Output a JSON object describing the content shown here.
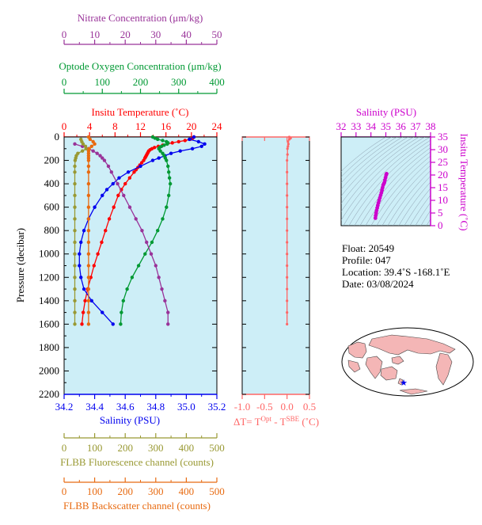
{
  "colors": {
    "nitrate": "#993399",
    "oxygen": "#009933",
    "temperature": "#ff0000",
    "salinity": "#0000ee",
    "fluorescence": "#999933",
    "backscatter": "#e86a10",
    "delta_t": "#ff6666",
    "ts_salinity": "#cc00cc",
    "plot_bg": "#cdeef7",
    "land": "#f4b6b6"
  },
  "axes": {
    "nitrate": {
      "title": "Nitrate Concentration (μm/kg)",
      "ticks": [
        "0",
        "10",
        "20",
        "30",
        "40",
        "50"
      ]
    },
    "oxygen": {
      "title": "Optode Oxygen Concentration (μm/kg)",
      "ticks": [
        "0",
        "100",
        "200",
        "300",
        "400"
      ]
    },
    "temperature": {
      "title": "Insitu Temperature (˚C)",
      "ticks": [
        "0",
        "4",
        "8",
        "12",
        "16",
        "20",
        "24"
      ]
    },
    "pressure": {
      "title": "Pressure (decibar)",
      "ticks": [
        "0",
        "200",
        "400",
        "600",
        "800",
        "1000",
        "1200",
        "1400",
        "1600",
        "1800",
        "2000",
        "2200"
      ]
    },
    "salinity": {
      "title": "Salinity (PSU)",
      "ticks": [
        "34.2",
        "34.4",
        "34.6",
        "34.8",
        "35.0",
        "35.2"
      ]
    },
    "fluorescence": {
      "title": "FLBB Fluorescence channel (counts)",
      "ticks": [
        "0",
        "100",
        "200",
        "300",
        "400",
        "500"
      ]
    },
    "backscatter": {
      "title": "FLBB Backscatter channel (counts)",
      "ticks": [
        "0",
        "100",
        "200",
        "300",
        "400",
        "500"
      ]
    },
    "delta_t": {
      "title": "ΔT= T",
      "sup1": "Opt",
      "mid": " - T",
      "sup2": "SBE",
      "unit": " (˚C)",
      "ticks": [
        "-1.0",
        "-0.5",
        "0.0",
        "0.5"
      ]
    },
    "ts_salinity": {
      "title": "Salinity (PSU)",
      "ticks": [
        "32",
        "33",
        "34",
        "35",
        "36",
        "37",
        "38"
      ]
    },
    "ts_temperature": {
      "title": "Insitu Temperature (˚C)",
      "ticks": [
        "0",
        "5",
        "10",
        "15",
        "20",
        "25",
        "30",
        "35"
      ]
    }
  },
  "info": {
    "float": "Float:  20549",
    "profile": "Profile:  047",
    "location": "Location:  39.4˚S  -168.1˚E",
    "date": "Date:  03/08/2024"
  },
  "chart_data": {
    "type": "line",
    "y_axis": "pressure",
    "ylim": [
      2200,
      0
    ],
    "series": [
      {
        "axis": "temperature",
        "xlim": [
          0,
          24
        ],
        "pressure": [
          0,
          10,
          20,
          30,
          40,
          50,
          60,
          70,
          80,
          90,
          100,
          110,
          120,
          130,
          140,
          150,
          160,
          170,
          180,
          200,
          220,
          240,
          260,
          280,
          300,
          350,
          400,
          450,
          500,
          600,
          700,
          800,
          900,
          1000,
          1100,
          1200,
          1300,
          1400,
          1500,
          1600
        ],
        "values": [
          20.4,
          20.2,
          19.8,
          19.0,
          18.0,
          17.0,
          16.2,
          15.5,
          14.8,
          14.2,
          13.8,
          13.5,
          13.3,
          13.2,
          13.1,
          13.0,
          12.9,
          12.8,
          12.7,
          12.5,
          12.2,
          11.9,
          11.6,
          11.3,
          11.0,
          10.3,
          9.6,
          9.0,
          8.5,
          7.8,
          7.1,
          6.5,
          5.9,
          5.3,
          4.7,
          4.2,
          3.7,
          3.3,
          3.0,
          2.8
        ]
      },
      {
        "axis": "salinity",
        "xlim": [
          34.2,
          35.2
        ],
        "pressure": [
          0,
          20,
          40,
          60,
          80,
          100,
          120,
          140,
          160,
          180,
          200,
          250,
          300,
          350,
          400,
          450,
          500,
          600,
          700,
          800,
          900,
          1000,
          1100,
          1200,
          1300,
          1400,
          1500,
          1600
        ],
        "values": [
          35.05,
          35.02,
          35.08,
          35.12,
          35.1,
          35.04,
          34.96,
          34.9,
          34.86,
          34.82,
          34.78,
          34.7,
          34.62,
          34.56,
          34.52,
          34.48,
          34.45,
          34.4,
          34.36,
          34.33,
          34.31,
          34.3,
          34.3,
          34.31,
          34.33,
          34.38,
          34.45,
          34.52
        ]
      },
      {
        "axis": "oxygen",
        "xlim": [
          0,
          400
        ],
        "pressure": [
          0,
          10,
          20,
          30,
          40,
          50,
          60,
          70,
          80,
          90,
          100,
          120,
          140,
          160,
          180,
          200,
          250,
          300,
          350,
          400,
          500,
          600,
          700,
          800,
          900,
          1000,
          1100,
          1200,
          1300,
          1400,
          1500,
          1600
        ],
        "values": [
          232,
          238,
          245,
          258,
          268,
          272,
          270,
          262,
          255,
          250,
          248,
          252,
          258,
          262,
          265,
          268,
          272,
          274,
          276,
          278,
          274,
          268,
          258,
          245,
          230,
          212,
          195,
          178,
          165,
          155,
          150,
          148
        ]
      },
      {
        "axis": "nitrate",
        "xlim": [
          0,
          50
        ],
        "pressure": [
          60,
          80,
          100,
          120,
          140,
          160,
          180,
          200,
          250,
          300,
          400,
          500,
          600,
          700,
          800,
          900,
          1000,
          1100,
          1200,
          1300,
          1400,
          1500,
          1600
        ],
        "values": [
          3.5,
          6.0,
          8.0,
          9.5,
          10.8,
          11.8,
          12.5,
          13.2,
          14.5,
          15.5,
          17.5,
          19.5,
          21.5,
          23.5,
          25.5,
          27.0,
          28.5,
          30.0,
          31.0,
          32.0,
          33.0,
          34.0,
          34.0
        ]
      },
      {
        "axis": "fluorescence",
        "xlim": [
          0,
          500
        ],
        "pressure": [
          20,
          40,
          60,
          80,
          100,
          120,
          140,
          160,
          180,
          200,
          250,
          300,
          400,
          500,
          600,
          700,
          800,
          900,
          1000,
          1100,
          1200,
          1300,
          1400,
          1500,
          1600
        ],
        "values": [
          55,
          58,
          62,
          70,
          72,
          60,
          45,
          40,
          38,
          36,
          35,
          35,
          35,
          35,
          35,
          35,
          35,
          35,
          35,
          35,
          35,
          35,
          35,
          35,
          35
        ]
      },
      {
        "axis": "backscatter",
        "xlim": [
          0,
          500
        ],
        "pressure": [
          0,
          20,
          40,
          60,
          80,
          100,
          120,
          140,
          160,
          180,
          200,
          250,
          300,
          400,
          500,
          600,
          700,
          800,
          900,
          1000,
          1100,
          1200,
          1300,
          1400,
          1500,
          1600
        ],
        "values": [
          80,
          85,
          95,
          100,
          90,
          82,
          80,
          80,
          80,
          80,
          80,
          80,
          80,
          80,
          80,
          80,
          80,
          80,
          80,
          80,
          80,
          80,
          80,
          80,
          80,
          80
        ]
      },
      {
        "axis": "delta_t",
        "xlim": [
          -1.0,
          0.5
        ],
        "pressure": [
          0,
          10,
          20,
          40,
          60,
          80,
          100,
          150,
          200,
          300,
          400,
          500,
          600,
          700,
          800,
          900,
          1000,
          1100,
          1200,
          1300,
          1400,
          1500,
          1600
        ],
        "values": [
          0.05,
          0.08,
          0.05,
          0.02,
          0.03,
          0.02,
          0.01,
          0.01,
          0.0,
          0.0,
          0.0,
          0.0,
          0.0,
          0.0,
          0.0,
          0.0,
          0.0,
          0.0,
          0.0,
          0.0,
          0.0,
          0.0,
          0.0
        ]
      }
    ],
    "ts_diagram": {
      "xlim": [
        32,
        38
      ],
      "ylim": [
        0,
        35
      ],
      "salinity": [
        34.3,
        34.32,
        34.35,
        34.38,
        34.42,
        34.46,
        34.5,
        34.55,
        34.6,
        34.65,
        34.7,
        34.74,
        34.78,
        34.82,
        34.86,
        34.9,
        34.94,
        34.98,
        35.02,
        35.05
      ],
      "temperature": [
        3.0,
        4.0,
        5.0,
        6.0,
        7.0,
        8.0,
        9.0,
        10.0,
        11.0,
        12.0,
        13.0,
        14.0,
        15.0,
        16.0,
        16.5,
        17.0,
        18.0,
        19.0,
        20.0,
        20.5
      ]
    }
  }
}
